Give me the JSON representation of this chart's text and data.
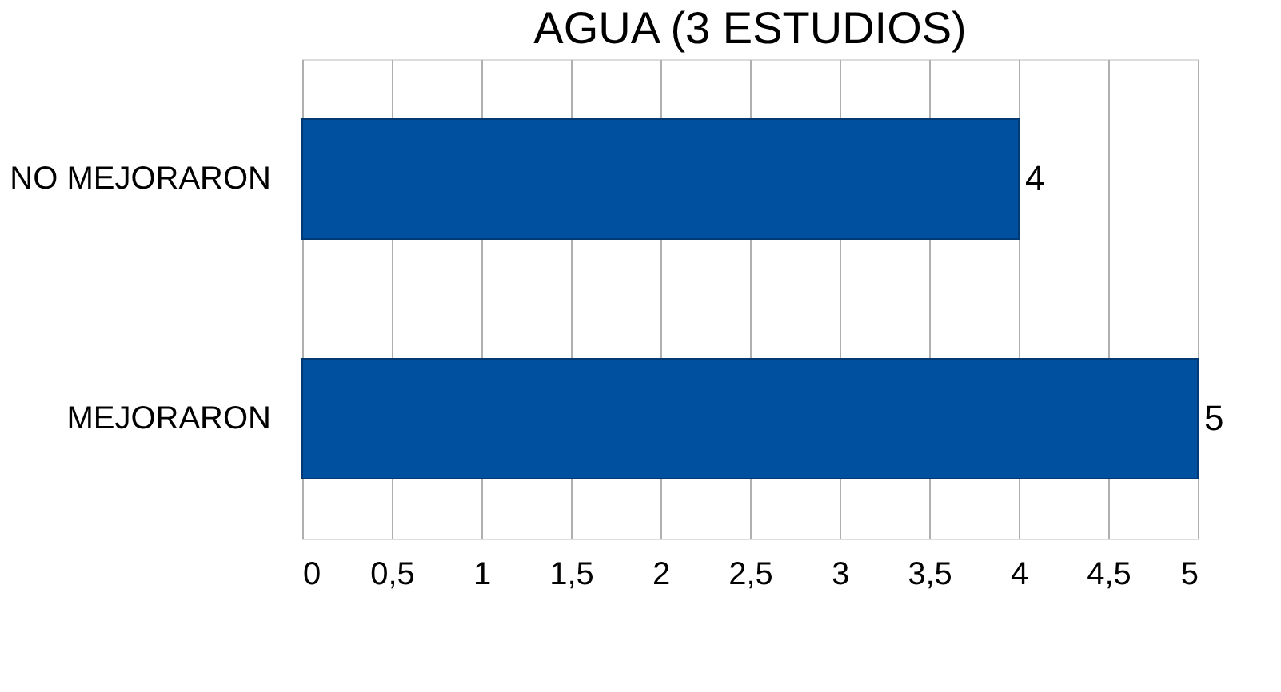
{
  "chart_data": {
    "type": "bar",
    "orientation": "horizontal",
    "title": "AGUA (3 ESTUDIOS)",
    "categories": [
      "NO MEJORARON",
      "MEJORARON"
    ],
    "values": [
      4,
      5
    ],
    "color": "#0050a0",
    "xlim": [
      0,
      5
    ],
    "xticks": [
      0,
      {
        "value": 0.5,
        "label": "0,5"
      },
      1,
      {
        "value": 1.5,
        "label": "1,5"
      },
      2,
      {
        "value": 2.5,
        "label": "2,5"
      },
      3,
      {
        "value": 3.5,
        "label": "3,5"
      },
      4,
      {
        "value": 4.5,
        "label": "4,5"
      },
      5
    ],
    "grid": "x",
    "data_labels": true
  }
}
